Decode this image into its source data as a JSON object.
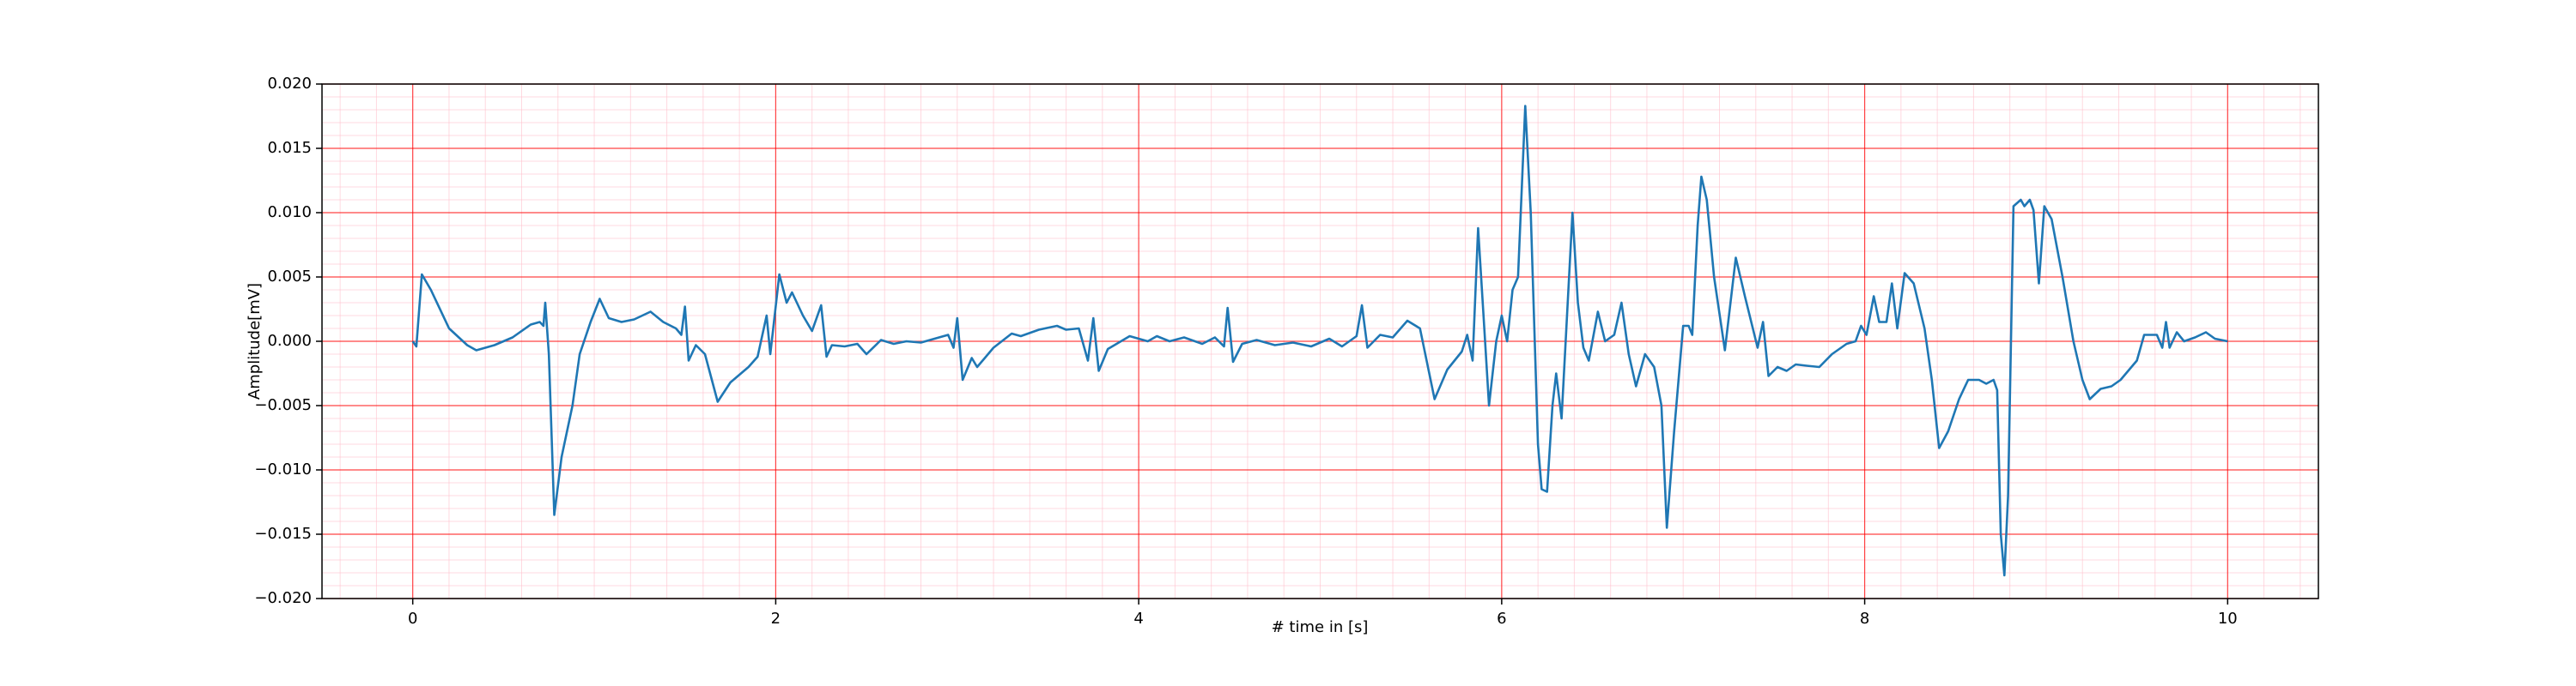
{
  "chart_data": {
    "type": "line",
    "xlabel": "# time in [s]",
    "ylabel": "Amplitude[mV]",
    "xlim": [
      -0.5,
      10.5
    ],
    "ylim": [
      -0.02,
      0.02
    ],
    "xticks": [
      0,
      2,
      4,
      6,
      8,
      10
    ],
    "yticks": [
      {
        "value": -0.02,
        "label": "−0.020"
      },
      {
        "value": -0.015,
        "label": "−0.015"
      },
      {
        "value": -0.01,
        "label": "−0.010"
      },
      {
        "value": -0.005,
        "label": "−0.005"
      },
      {
        "value": 0,
        "label": "0.000"
      },
      {
        "value": 0.005,
        "label": "0.005"
      },
      {
        "value": 0.01,
        "label": "0.010"
      },
      {
        "value": 0.015,
        "label": "0.015"
      },
      {
        "value": 0.02,
        "label": "0.020"
      }
    ],
    "grid": true,
    "grid_color": "#ff0000",
    "minor_grid_color": "#ffc0cb",
    "series": [
      {
        "color": "#1f77b4",
        "x": [
          0,
          0.02,
          0.05,
          0.1,
          0.2,
          0.3,
          0.35,
          0.45,
          0.55,
          0.65,
          0.7,
          0.72,
          0.73,
          0.75,
          0.78,
          0.82,
          0.88,
          0.92,
          0.98,
          1.03,
          1.08,
          1.15,
          1.22,
          1.31,
          1.38,
          1.45,
          1.48,
          1.5,
          1.52,
          1.56,
          1.61,
          1.68,
          1.75,
          1.85,
          1.9,
          1.95,
          1.97,
          2.02,
          2.06,
          2.09,
          2.15,
          2.2,
          2.25,
          2.28,
          2.31,
          2.38,
          2.45,
          2.5,
          2.58,
          2.65,
          2.72,
          2.8,
          2.9,
          2.95,
          2.98,
          3.0,
          3.03,
          3.08,
          3.11,
          3.2,
          3.3,
          3.35,
          3.45,
          3.55,
          3.6,
          3.67,
          3.72,
          3.75,
          3.78,
          3.83,
          3.95,
          4.05,
          4.1,
          4.17,
          4.25,
          4.35,
          4.42,
          4.47,
          4.49,
          4.52,
          4.57,
          4.65,
          4.75,
          4.85,
          4.95,
          5.05,
          5.12,
          5.2,
          5.23,
          5.26,
          5.33,
          5.4,
          5.48,
          5.55,
          5.63,
          5.7,
          5.78,
          5.81,
          5.84,
          5.87,
          5.9,
          5.93,
          5.97,
          6.0,
          6.03,
          6.06,
          6.09,
          6.13,
          6.16,
          6.2,
          6.22,
          6.25,
          6.28,
          6.3,
          6.33,
          6.39,
          6.42,
          6.45,
          6.48,
          6.53,
          6.57,
          6.62,
          6.66,
          6.7,
          6.74,
          6.79,
          6.84,
          6.88,
          6.91,
          6.95,
          7.0,
          7.03,
          7.05,
          7.08,
          7.1,
          7.13,
          7.17,
          7.23,
          7.29,
          7.34,
          7.41,
          7.44,
          7.47,
          7.52,
          7.57,
          7.62,
          7.68,
          7.75,
          7.82,
          7.9,
          7.95,
          7.98,
          8.01,
          8.05,
          8.08,
          8.12,
          8.15,
          8.18,
          8.22,
          8.27,
          8.33,
          8.37,
          8.41,
          8.46,
          8.52,
          8.57,
          8.63,
          8.67,
          8.71,
          8.73,
          8.75,
          8.77,
          8.79,
          8.82,
          8.86,
          8.88,
          8.91,
          8.93,
          8.96,
          8.99,
          9.03,
          9.09,
          9.15,
          9.2,
          9.24,
          9.3,
          9.36,
          9.41,
          9.5,
          9.54,
          9.61,
          9.64,
          9.66,
          9.68,
          9.72,
          9.76,
          9.82,
          9.88,
          9.93,
          10.0
        ],
        "values": [
          0,
          -0.0004,
          0.0052,
          0.004,
          0.001,
          -0.0003,
          -0.0007,
          -0.0003,
          0.0003,
          0.0013,
          0.0015,
          0.0012,
          0.003,
          -0.001,
          -0.0135,
          -0.009,
          -0.005,
          -0.001,
          0.0015,
          0.0033,
          0.0018,
          0.0015,
          0.0017,
          0.0023,
          0.0015,
          0.001,
          0.0005,
          0.0027,
          -0.0015,
          -0.0003,
          -0.001,
          -0.0047,
          -0.0032,
          -0.002,
          -0.0012,
          0.002,
          -0.001,
          0.0052,
          0.003,
          0.0038,
          0.002,
          0.0008,
          0.0028,
          -0.0012,
          -0.0003,
          -0.0004,
          -0.0002,
          -0.001,
          0.0001,
          -0.0002,
          0,
          -0.0001,
          0.0003,
          0.0005,
          -0.0005,
          0.0018,
          -0.003,
          -0.0013,
          -0.002,
          -0.0005,
          0.0006,
          0.0004,
          0.0009,
          0.0012,
          0.0009,
          0.001,
          -0.0015,
          0.0018,
          -0.0023,
          -0.0006,
          0.0004,
          0,
          0.0004,
          0,
          0.0003,
          -0.0002,
          0.0003,
          -0.0004,
          0.0026,
          -0.0016,
          -0.0002,
          0.0001,
          -0.0003,
          -0.0001,
          -0.0004,
          0.0002,
          -0.0004,
          0.0004,
          0.0028,
          -0.0005,
          0.0005,
          0.0003,
          0.0016,
          0.001,
          -0.0045,
          -0.0022,
          -0.0008,
          0.0005,
          -0.0015,
          0.0088,
          0.002,
          -0.005,
          0,
          0.002,
          0,
          0.004,
          0.005,
          0.0183,
          0.01,
          -0.008,
          -0.0115,
          -0.0117,
          -0.005,
          -0.0025,
          -0.006,
          0.01,
          0.003,
          -0.0005,
          -0.0015,
          0.0023,
          0,
          0.0005,
          0.003,
          -0.001,
          -0.0035,
          -0.001,
          -0.002,
          -0.005,
          -0.0145,
          -0.007,
          0.0012,
          0.0012,
          0.0005,
          0.009,
          0.0128,
          0.011,
          0.005,
          -0.0007,
          0.0065,
          0.0035,
          -0.0005,
          0.0015,
          -0.0027,
          -0.002,
          -0.0023,
          -0.0018,
          -0.0019,
          -0.002,
          -0.001,
          -0.0002,
          0,
          0.0012,
          0.0005,
          0.0035,
          0.0015,
          0.0015,
          0.0045,
          0.001,
          0.0053,
          0.0045,
          0.001,
          -0.003,
          -0.0083,
          -0.007,
          -0.0045,
          -0.003,
          -0.003,
          -0.0033,
          -0.003,
          -0.0038,
          -0.015,
          -0.0182,
          -0.012,
          0.0105,
          0.011,
          0.0105,
          0.011,
          0.0102,
          0.0045,
          0.0105,
          0.0095,
          0.005,
          0,
          -0.003,
          -0.0045,
          -0.0037,
          -0.0035,
          -0.003,
          -0.0015,
          0.0005,
          0.0005,
          -0.0005,
          0.0015,
          -0.0005,
          0.0007,
          0,
          0.0003,
          0.0007,
          0.0002,
          0
        ]
      }
    ]
  }
}
